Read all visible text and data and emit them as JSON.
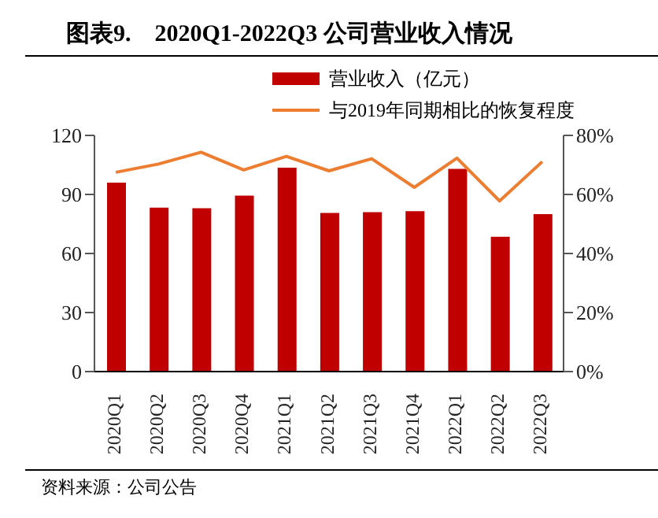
{
  "chart_data": {
    "type": "bar",
    "title": "图表9.    2020Q1-2022Q3 公司营业收入情况",
    "annotations": [
      "资料来源：公司公告"
    ],
    "categories": [
      "2020Q1",
      "2020Q2",
      "2020Q3",
      "2020Q4",
      "2021Q1",
      "2021Q2",
      "2021Q3",
      "2021Q4",
      "2022Q1",
      "2022Q2",
      "2022Q3"
    ],
    "series": [
      {
        "name": "营业收入（亿元）",
        "color": "#c00000",
        "values": [
          96,
          83.3,
          83,
          89.4,
          103.6,
          80.6,
          81,
          81.5,
          103,
          68.5,
          80
        ]
      },
      {
        "name": "与2019年同期相比的恢复程度",
        "type": "line",
        "axis": "y2",
        "color": "#ed7d31",
        "values": [
          67.5,
          70.3,
          74.3,
          68.3,
          72.9,
          68,
          72.1,
          62.4,
          72.3,
          57.8,
          71.1
        ]
      }
    ],
    "ylim": [
      0,
      120
    ],
    "yticks": [
      0,
      30,
      60,
      90,
      120
    ],
    "y2lim": [
      0,
      80
    ],
    "y2ticks": [
      {
        "value": 0,
        "label": "0%"
      },
      {
        "value": 20,
        "label": "20%"
      },
      {
        "value": 40,
        "label": "40%"
      },
      {
        "value": 60,
        "label": "60%"
      },
      {
        "value": 80,
        "label": "80%"
      }
    ],
    "legend": "top",
    "marker": "none",
    "line_style": "solid"
  }
}
